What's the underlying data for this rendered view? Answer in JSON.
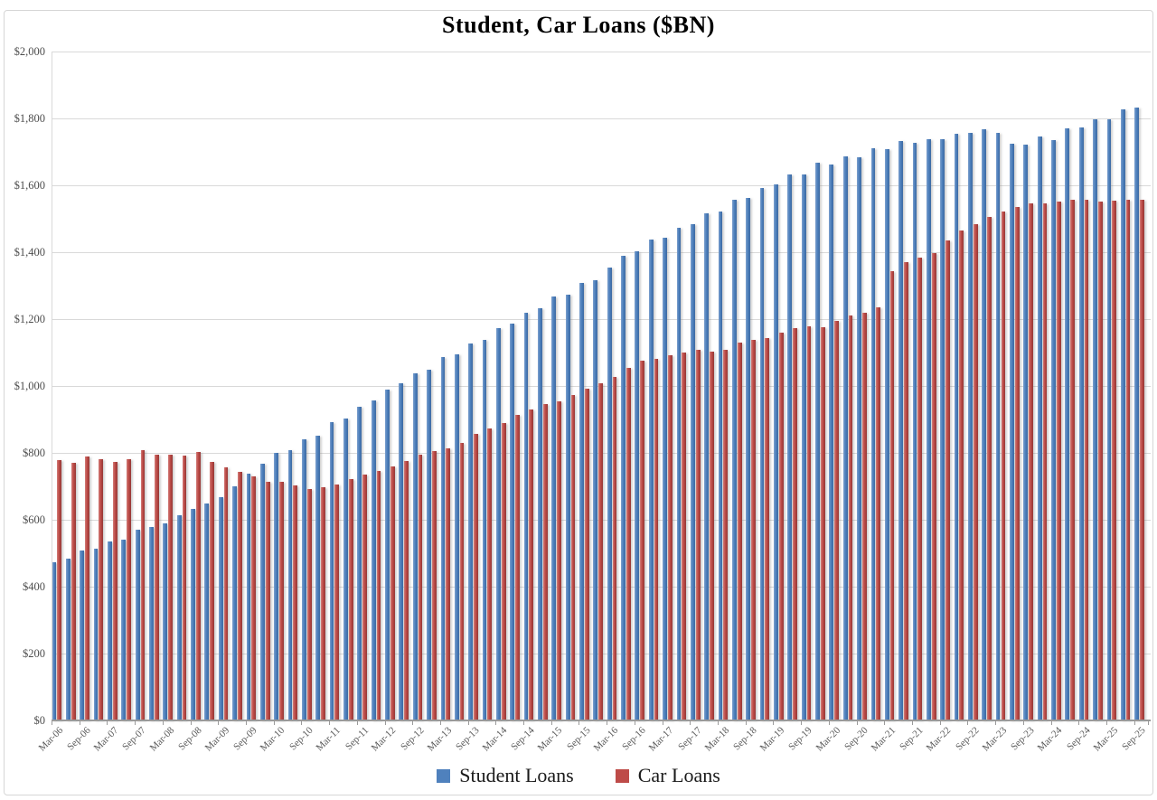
{
  "chart_data": {
    "type": "bar",
    "title": "Student, Car Loans ($BN)",
    "xlabel": "",
    "ylabel": "",
    "ylim": [
      0,
      2000
    ],
    "ytick_step": 200,
    "ytick_labels": [
      "$0",
      "$200",
      "$400",
      "$600",
      "$800",
      "$1,000",
      "$1,200",
      "$1,400",
      "$1,600",
      "$1,800",
      "$2,000"
    ],
    "grid": "horizontal",
    "legend_position": "bottom",
    "x_label_every": 2,
    "x_label_rotation": 45,
    "categories": [
      "Mar-06",
      "Jun-06",
      "Sep-06",
      "Dec-06",
      "Mar-07",
      "Jun-07",
      "Sep-07",
      "Dec-07",
      "Mar-08",
      "Jun-08",
      "Sep-08",
      "Dec-08",
      "Mar-09",
      "Jun-09",
      "Sep-09",
      "Dec-09",
      "Mar-10",
      "Jun-10",
      "Sep-10",
      "Dec-10",
      "Mar-11",
      "Jun-11",
      "Sep-11",
      "Dec-11",
      "Mar-12",
      "Jun-12",
      "Sep-12",
      "Dec-12",
      "Mar-13",
      "Jun-13",
      "Sep-13",
      "Dec-13",
      "Mar-14",
      "Jun-14",
      "Sep-14",
      "Dec-14",
      "Mar-15",
      "Jun-15",
      "Sep-15",
      "Dec-15",
      "Mar-16",
      "Jun-16",
      "Sep-16",
      "Dec-16",
      "Mar-17",
      "Jun-17",
      "Sep-17",
      "Dec-17",
      "Mar-18",
      "Jun-18",
      "Sep-18",
      "Dec-18",
      "Mar-19",
      "Jun-19",
      "Sep-19",
      "Dec-19",
      "Mar-20",
      "Jun-20",
      "Sep-20",
      "Dec-20",
      "Mar-21",
      "Jun-21",
      "Sep-21",
      "Dec-21",
      "Mar-22",
      "Jun-22",
      "Sep-22",
      "Dec-22",
      "Mar-23",
      "Jun-23",
      "Sep-23",
      "Dec-23",
      "Mar-24",
      "Jun-24",
      "Sep-24",
      "Dec-24",
      "Mar-25",
      "Jun-25",
      "Sep-25"
    ],
    "series": [
      {
        "name": "Student Loans",
        "color": "#4F81BD",
        "color_light": "#7FA1CE",
        "color_dark": "#3C69A2",
        "values": [
          474,
          485,
          507,
          514,
          534,
          540,
          571,
          578,
          588,
          614,
          633,
          650,
          668,
          700,
          738,
          767,
          800,
          807,
          841,
          852,
          893,
          903,
          938,
          956,
          989,
          1008,
          1037,
          1048,
          1086,
          1095,
          1127,
          1138,
          1174,
          1186,
          1219,
          1232,
          1267,
          1273,
          1307,
          1316,
          1355,
          1390,
          1404,
          1438,
          1444,
          1474,
          1485,
          1516,
          1522,
          1558,
          1561,
          1591,
          1603,
          1632,
          1633,
          1667,
          1663,
          1687,
          1684,
          1710,
          1708,
          1732,
          1726,
          1738,
          1738,
          1753,
          1757,
          1768,
          1757,
          1723,
          1721,
          1747,
          1735,
          1769,
          1772,
          1798,
          1796,
          1828,
          1832
        ]
      },
      {
        "name": "Car Loans",
        "color": "#BE4B48",
        "color_light": "#D3807C",
        "color_dark": "#953936",
        "values": [
          778,
          770,
          789,
          781,
          773,
          780,
          808,
          795,
          795,
          793,
          803,
          773,
          756,
          744,
          729,
          714,
          713,
          703,
          692,
          696,
          706,
          722,
          734,
          745,
          759,
          776,
          794,
          805,
          813,
          831,
          858,
          872,
          888,
          913,
          930,
          945,
          955,
          972,
          992,
          1008,
          1028,
          1055,
          1077,
          1082,
          1093,
          1100,
          1107,
          1104,
          1109,
          1129,
          1138,
          1143,
          1159,
          1174,
          1179,
          1176,
          1194,
          1212,
          1218,
          1236,
          1344,
          1371,
          1385,
          1398,
          1434,
          1464,
          1484,
          1506,
          1522,
          1536,
          1546,
          1547,
          1552,
          1557,
          1557,
          1551,
          1555,
          1557,
          1557
        ]
      }
    ]
  },
  "legend": {
    "items": [
      {
        "label": "Student Loans",
        "color": "#4F81BD"
      },
      {
        "label": "Car Loans",
        "color": "#BE4B48"
      }
    ]
  },
  "colors": {
    "background": "#ffffff",
    "frame_border": "#d6d6d6",
    "gridline": "#d9d9d9",
    "baseline": "#9a9a9a",
    "axis_label": "#595959",
    "title": "#000000"
  }
}
